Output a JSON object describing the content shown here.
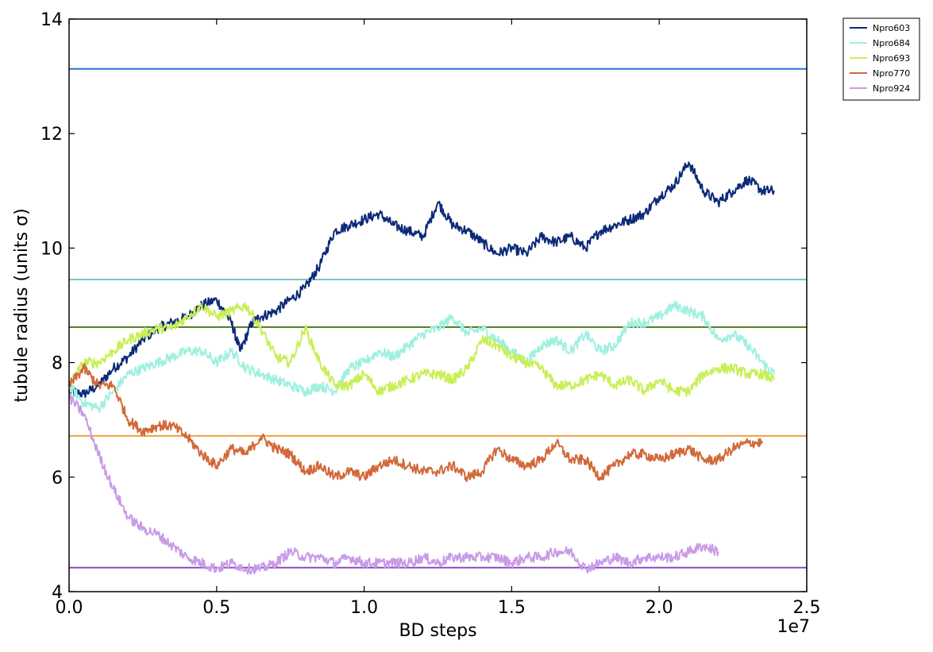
{
  "chart_data": {
    "type": "line",
    "title": "",
    "xlabel": "BD steps",
    "ylabel": "tubule radius (units σ)",
    "x_offset_label": "1e7",
    "xlim": [
      0.0,
      2.5
    ],
    "ylim": [
      4,
      14
    ],
    "xticks": [
      "0.0",
      "0.5",
      "1.0",
      "1.5",
      "2.0",
      "2.5"
    ],
    "yticks": [
      "4",
      "6",
      "8",
      "10",
      "12",
      "14"
    ],
    "grid": false,
    "legend_position": "outside-top-right",
    "series": [
      {
        "name": "Npro603",
        "color": "#0b2a78",
        "x": [
          0.0,
          0.05,
          0.1,
          0.15,
          0.2,
          0.25,
          0.3,
          0.35,
          0.4,
          0.45,
          0.5,
          0.55,
          0.58,
          0.62,
          0.65,
          0.7,
          0.75,
          0.8,
          0.85,
          0.9,
          0.95,
          1.0,
          1.05,
          1.1,
          1.15,
          1.2,
          1.25,
          1.3,
          1.35,
          1.4,
          1.45,
          1.5,
          1.55,
          1.6,
          1.65,
          1.7,
          1.75,
          1.8,
          1.85,
          1.9,
          1.95,
          2.0,
          2.05,
          2.1,
          2.15,
          2.2,
          2.25,
          2.3,
          2.35,
          2.39
        ],
        "y": [
          7.5,
          7.45,
          7.6,
          7.9,
          8.1,
          8.4,
          8.6,
          8.7,
          8.8,
          9.0,
          9.1,
          8.7,
          8.2,
          8.7,
          8.8,
          8.9,
          9.1,
          9.3,
          9.7,
          10.3,
          10.4,
          10.5,
          10.6,
          10.4,
          10.3,
          10.2,
          10.8,
          10.4,
          10.3,
          10.1,
          9.9,
          10.0,
          9.9,
          10.2,
          10.1,
          10.2,
          10.0,
          10.3,
          10.4,
          10.5,
          10.6,
          10.9,
          11.1,
          11.5,
          11.0,
          10.8,
          11.0,
          11.2,
          11.0,
          11.0
        ]
      },
      {
        "name": "Npro684",
        "color": "#a0f0df",
        "x": [
          0.0,
          0.05,
          0.1,
          0.15,
          0.2,
          0.25,
          0.3,
          0.35,
          0.4,
          0.45,
          0.5,
          0.55,
          0.6,
          0.65,
          0.7,
          0.75,
          0.8,
          0.85,
          0.9,
          0.95,
          1.0,
          1.05,
          1.1,
          1.15,
          1.2,
          1.25,
          1.3,
          1.35,
          1.4,
          1.45,
          1.5,
          1.55,
          1.6,
          1.65,
          1.7,
          1.75,
          1.8,
          1.85,
          1.9,
          1.95,
          2.0,
          2.05,
          2.1,
          2.15,
          2.2,
          2.25,
          2.3,
          2.35,
          2.39
        ],
        "y": [
          7.6,
          7.3,
          7.2,
          7.5,
          7.8,
          7.9,
          8.0,
          8.1,
          8.2,
          8.2,
          8.0,
          8.2,
          7.9,
          7.8,
          7.7,
          7.6,
          7.5,
          7.6,
          7.5,
          7.9,
          8.0,
          8.2,
          8.1,
          8.3,
          8.5,
          8.6,
          8.8,
          8.5,
          8.6,
          8.4,
          8.2,
          8.0,
          8.3,
          8.4,
          8.2,
          8.5,
          8.2,
          8.3,
          8.7,
          8.7,
          8.8,
          9.0,
          8.9,
          8.8,
          8.4,
          8.5,
          8.3,
          8.0,
          7.8
        ]
      },
      {
        "name": "Npro693",
        "color": "#c8ef55",
        "x": [
          0.0,
          0.05,
          0.1,
          0.15,
          0.2,
          0.25,
          0.3,
          0.35,
          0.4,
          0.45,
          0.5,
          0.55,
          0.6,
          0.65,
          0.7,
          0.75,
          0.8,
          0.85,
          0.9,
          0.95,
          1.0,
          1.05,
          1.1,
          1.15,
          1.2,
          1.25,
          1.3,
          1.35,
          1.4,
          1.45,
          1.5,
          1.55,
          1.6,
          1.65,
          1.7,
          1.75,
          1.8,
          1.85,
          1.9,
          1.95,
          2.0,
          2.05,
          2.1,
          2.15,
          2.2,
          2.25,
          2.3,
          2.35,
          2.39
        ],
        "y": [
          7.6,
          8.0,
          8.0,
          8.2,
          8.4,
          8.5,
          8.6,
          8.6,
          8.8,
          9.0,
          8.8,
          8.9,
          9.0,
          8.6,
          8.1,
          8.0,
          8.6,
          8.0,
          7.6,
          7.6,
          7.8,
          7.5,
          7.6,
          7.7,
          7.8,
          7.8,
          7.7,
          7.9,
          8.4,
          8.3,
          8.1,
          8.0,
          7.9,
          7.6,
          7.6,
          7.7,
          7.8,
          7.6,
          7.7,
          7.5,
          7.7,
          7.5,
          7.5,
          7.8,
          7.9,
          7.9,
          7.8,
          7.8,
          7.7
        ]
      },
      {
        "name": "Npro770",
        "color": "#d2693a",
        "x": [
          0.0,
          0.05,
          0.1,
          0.15,
          0.2,
          0.25,
          0.3,
          0.35,
          0.4,
          0.45,
          0.5,
          0.55,
          0.6,
          0.65,
          0.7,
          0.75,
          0.8,
          0.85,
          0.9,
          0.95,
          1.0,
          1.05,
          1.1,
          1.15,
          1.2,
          1.25,
          1.3,
          1.35,
          1.4,
          1.45,
          1.5,
          1.55,
          1.6,
          1.65,
          1.7,
          1.75,
          1.8,
          1.85,
          1.9,
          1.95,
          2.0,
          2.05,
          2.1,
          2.15,
          2.2,
          2.25,
          2.3,
          2.35
        ],
        "y": [
          7.6,
          7.9,
          7.6,
          7.6,
          7.0,
          6.8,
          6.9,
          6.9,
          6.7,
          6.4,
          6.2,
          6.5,
          6.4,
          6.7,
          6.5,
          6.4,
          6.1,
          6.2,
          6.0,
          6.1,
          6.0,
          6.2,
          6.3,
          6.2,
          6.1,
          6.1,
          6.2,
          6.0,
          6.1,
          6.5,
          6.3,
          6.2,
          6.3,
          6.6,
          6.3,
          6.3,
          6.0,
          6.2,
          6.4,
          6.4,
          6.3,
          6.4,
          6.5,
          6.3,
          6.3,
          6.5,
          6.6,
          6.6
        ]
      },
      {
        "name": "Npro924",
        "color": "#c89be8",
        "x": [
          0.0,
          0.05,
          0.1,
          0.15,
          0.2,
          0.25,
          0.3,
          0.35,
          0.4,
          0.45,
          0.5,
          0.55,
          0.6,
          0.65,
          0.7,
          0.75,
          0.8,
          0.85,
          0.9,
          0.95,
          1.0,
          1.05,
          1.1,
          1.15,
          1.2,
          1.25,
          1.3,
          1.35,
          1.4,
          1.45,
          1.5,
          1.55,
          1.6,
          1.65,
          1.7,
          1.75,
          1.8,
          1.85,
          1.9,
          1.95,
          2.0,
          2.05,
          2.1,
          2.15,
          2.2
        ],
        "y": [
          7.4,
          7.1,
          6.4,
          5.8,
          5.3,
          5.1,
          5.0,
          4.8,
          4.6,
          4.5,
          4.4,
          4.5,
          4.4,
          4.4,
          4.5,
          4.7,
          4.6,
          4.6,
          4.5,
          4.6,
          4.5,
          4.5,
          4.5,
          4.5,
          4.6,
          4.5,
          4.6,
          4.6,
          4.6,
          4.6,
          4.5,
          4.6,
          4.6,
          4.7,
          4.7,
          4.4,
          4.5,
          4.6,
          4.5,
          4.6,
          4.6,
          4.6,
          4.7,
          4.8,
          4.7
        ]
      }
    ],
    "reference_lines": [
      {
        "y": 13.13,
        "color": "#2a72d8"
      },
      {
        "y": 9.45,
        "color": "#7cc5c5"
      },
      {
        "y": 8.62,
        "color": "#4e7a22"
      },
      {
        "y": 6.72,
        "color": "#f0a040"
      },
      {
        "y": 4.42,
        "color": "#8a4cc0"
      }
    ]
  }
}
